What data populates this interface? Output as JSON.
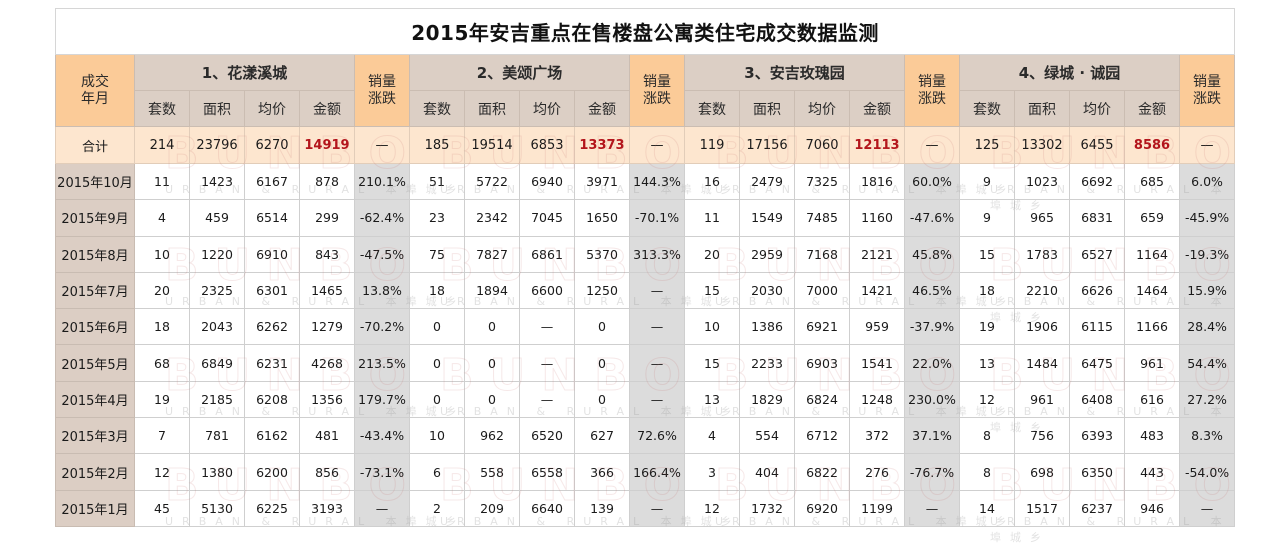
{
  "chart_data": {
    "type": "table",
    "title": "2015年安吉重点在售楼盘公寓类住宅成交数据监测",
    "header": {
      "month_col": [
        "成交",
        "年月"
      ],
      "change_col": [
        "销量",
        "涨跌"
      ],
      "metrics": [
        "套数",
        "面积",
        "均价",
        "金额"
      ]
    },
    "projects": [
      {
        "name": "1、花漾溪城"
      },
      {
        "name": "2、美颂广场"
      },
      {
        "name": "3、安吉玫瑰园"
      },
      {
        "name": "4、绿城 · 诚园"
      }
    ],
    "total": {
      "label": "合计",
      "values": [
        [
          "214",
          "23796",
          "6270",
          "14919",
          "—"
        ],
        [
          "185",
          "19514",
          "6853",
          "13373",
          "—"
        ],
        [
          "119",
          "17156",
          "7060",
          "12113",
          "—"
        ],
        [
          "125",
          "13302",
          "6455",
          "8586",
          "—"
        ]
      ]
    },
    "rows": [
      {
        "month": "2015年10月",
        "values": [
          [
            "11",
            "1423",
            "6167",
            "878",
            "210.1%"
          ],
          [
            "51",
            "5722",
            "6940",
            "3971",
            "144.3%"
          ],
          [
            "16",
            "2479",
            "7325",
            "1816",
            "60.0%"
          ],
          [
            "9",
            "1023",
            "6692",
            "685",
            "6.0%"
          ]
        ]
      },
      {
        "month": "2015年9月",
        "values": [
          [
            "4",
            "459",
            "6514",
            "299",
            "-62.4%"
          ],
          [
            "23",
            "2342",
            "7045",
            "1650",
            "-70.1%"
          ],
          [
            "11",
            "1549",
            "7485",
            "1160",
            "-47.6%"
          ],
          [
            "9",
            "965",
            "6831",
            "659",
            "-45.9%"
          ]
        ]
      },
      {
        "month": "2015年8月",
        "values": [
          [
            "10",
            "1220",
            "6910",
            "843",
            "-47.5%"
          ],
          [
            "75",
            "7827",
            "6861",
            "5370",
            "313.3%"
          ],
          [
            "20",
            "2959",
            "7168",
            "2121",
            "45.8%"
          ],
          [
            "15",
            "1783",
            "6527",
            "1164",
            "-19.3%"
          ]
        ]
      },
      {
        "month": "2015年7月",
        "values": [
          [
            "20",
            "2325",
            "6301",
            "1465",
            "13.8%"
          ],
          [
            "18",
            "1894",
            "6600",
            "1250",
            "—"
          ],
          [
            "15",
            "2030",
            "7000",
            "1421",
            "46.5%"
          ],
          [
            "18",
            "2210",
            "6626",
            "1464",
            "15.9%"
          ]
        ]
      },
      {
        "month": "2015年6月",
        "values": [
          [
            "18",
            "2043",
            "6262",
            "1279",
            "-70.2%"
          ],
          [
            "0",
            "0",
            "—",
            "0",
            "—"
          ],
          [
            "10",
            "1386",
            "6921",
            "959",
            "-37.9%"
          ],
          [
            "19",
            "1906",
            "6115",
            "1166",
            "28.4%"
          ]
        ]
      },
      {
        "month": "2015年5月",
        "values": [
          [
            "68",
            "6849",
            "6231",
            "4268",
            "213.5%"
          ],
          [
            "0",
            "0",
            "—",
            "0",
            "—"
          ],
          [
            "15",
            "2233",
            "6903",
            "1541",
            "22.0%"
          ],
          [
            "13",
            "1484",
            "6475",
            "961",
            "54.4%"
          ]
        ]
      },
      {
        "month": "2015年4月",
        "values": [
          [
            "19",
            "2185",
            "6208",
            "1356",
            "179.7%"
          ],
          [
            "0",
            "0",
            "—",
            "0",
            "—"
          ],
          [
            "13",
            "1829",
            "6824",
            "1248",
            "230.0%"
          ],
          [
            "12",
            "961",
            "6408",
            "616",
            "27.2%"
          ]
        ]
      },
      {
        "month": "2015年3月",
        "values": [
          [
            "7",
            "781",
            "6162",
            "481",
            "-43.4%"
          ],
          [
            "10",
            "962",
            "6520",
            "627",
            "72.6%"
          ],
          [
            "4",
            "554",
            "6712",
            "372",
            "37.1%"
          ],
          [
            "8",
            "756",
            "6393",
            "483",
            "8.3%"
          ]
        ]
      },
      {
        "month": "2015年2月",
        "values": [
          [
            "12",
            "1380",
            "6200",
            "856",
            "-73.1%"
          ],
          [
            "6",
            "558",
            "6558",
            "366",
            "166.4%"
          ],
          [
            "3",
            "404",
            "6822",
            "276",
            "-76.7%"
          ],
          [
            "8",
            "698",
            "6350",
            "443",
            "-54.0%"
          ]
        ]
      },
      {
        "month": "2015年1月",
        "values": [
          [
            "45",
            "5130",
            "6225",
            "3193",
            "—"
          ],
          [
            "2",
            "209",
            "6640",
            "139",
            "—"
          ],
          [
            "12",
            "1732",
            "6920",
            "1199",
            "—"
          ],
          [
            "14",
            "1517",
            "6237",
            "946",
            "—"
          ]
        ]
      }
    ],
    "colors": {
      "header_orange": "#fbcb98",
      "project_header": "#dccfc5",
      "total_row": "#fde6cf",
      "month_col": "#dccec4",
      "change_col": "#dcdcdc",
      "total_amount_red": "#b3141b"
    }
  },
  "watermark": {
    "logo": "BUNBO",
    "tagline": "URBAN & RURAL 本埠城乡"
  }
}
